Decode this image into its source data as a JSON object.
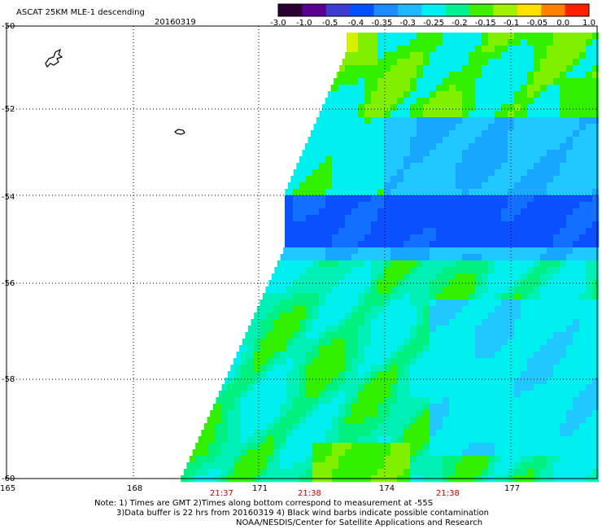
{
  "header": {
    "product": "ASCAT 25KM MLE-1 descending",
    "date": "20160319"
  },
  "colorbar": {
    "ticks": [
      "-3.0",
      "-1.0",
      "-0.5",
      "-0.4",
      "-0.35",
      "-0.3",
      "-0.25",
      "-0.2",
      "-0.15",
      "-0.1",
      "-0.05",
      "0.0",
      "1.0"
    ],
    "colors": [
      "#2a0030",
      "#5a0090",
      "#3c3cd0",
      "#0050ff",
      "#1a8cff",
      "#20b8ff",
      "#00f0f0",
      "#00f090",
      "#40f000",
      "#a0f000",
      "#ffe000",
      "#ff8000",
      "#ff2000"
    ]
  },
  "axes": {
    "lat_labels": [
      "-50",
      "-52",
      "-54",
      "-56",
      "-58",
      "-60"
    ],
    "lon_labels": [
      "165",
      "168",
      "171",
      "174",
      "177"
    ]
  },
  "times": [
    "21:37",
    "21:38",
    "21:38"
  ],
  "notes": {
    "line1": "Note: 1) Times are GMT 2)Times along bottom correspond to measurement at -55S",
    "line2": "3)Data buffer is 22 hrs from 20160319 4) Black wind barbs indicate possible contamination",
    "line3": "NOAA/NESDIS/Center for Satellite Applications and Research"
  }
}
